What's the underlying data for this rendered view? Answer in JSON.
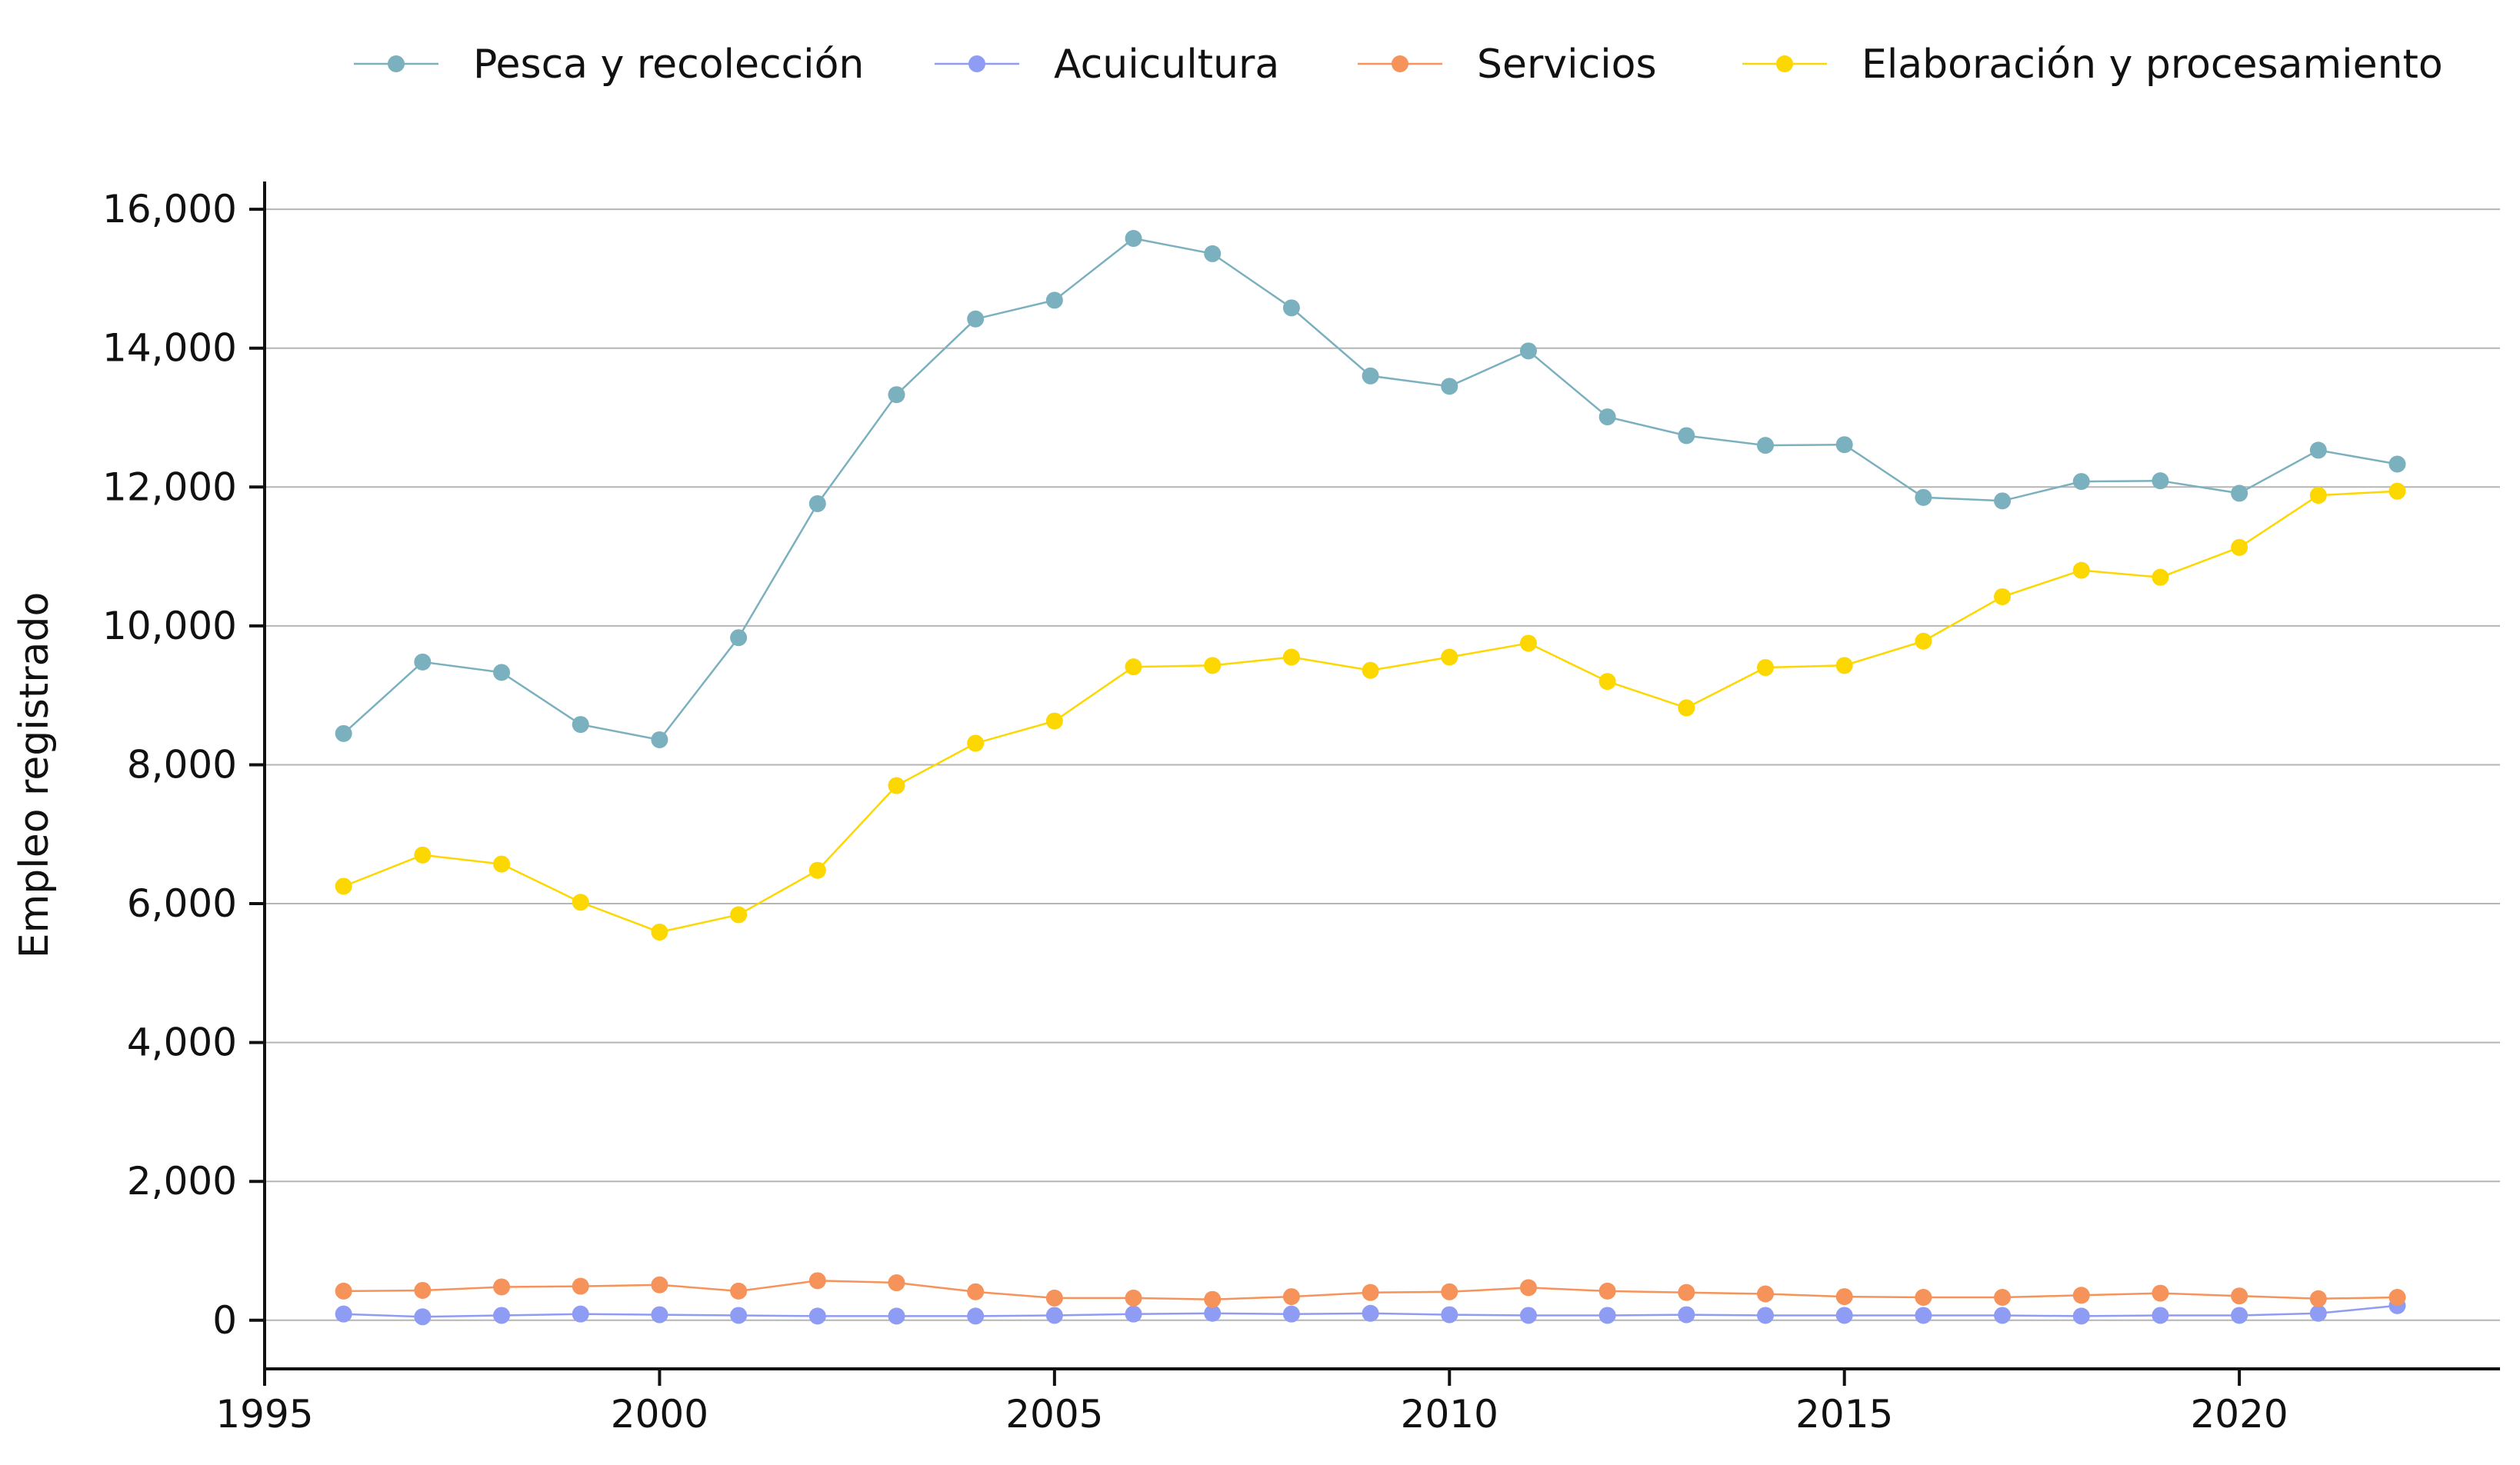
{
  "chart_data": {
    "type": "line",
    "title": "",
    "xlabel": "",
    "ylabel": "Empleo registrado",
    "xlim": [
      1995,
      2023.3
    ],
    "ylim": [
      -700,
      16400
    ],
    "x_ticks": [
      1995,
      2000,
      2005,
      2010,
      2015,
      2020
    ],
    "x_tick_labels": [
      "1995",
      "2000",
      "2005",
      "2010",
      "2015",
      "2020"
    ],
    "y_ticks": [
      0,
      2000,
      4000,
      6000,
      8000,
      10000,
      12000,
      14000,
      16000
    ],
    "y_tick_labels": [
      "0",
      "2,000",
      "4,000",
      "6,000",
      "8,000",
      "10,000",
      "12,000",
      "14,000",
      "16,000"
    ],
    "grid": "horizontal",
    "legend_position": "top",
    "x": [
      1996,
      1997,
      1998,
      1999,
      2000,
      2001,
      2002,
      2003,
      2004,
      2005,
      2006,
      2007,
      2008,
      2009,
      2010,
      2011,
      2012,
      2013,
      2014,
      2015,
      2016,
      2017,
      2018,
      2019,
      2020,
      2021,
      2022
    ],
    "series": [
      {
        "name": "Pesca y recolección",
        "color": "#7BB0BE",
        "values": [
          8450,
          9480,
          9330,
          8580,
          8360,
          9830,
          11760,
          13330,
          14420,
          14690,
          15580,
          15360,
          14580,
          13600,
          13450,
          13960,
          13010,
          12740,
          12600,
          12610,
          11850,
          11800,
          12080,
          12090,
          11910,
          12530,
          12330
        ]
      },
      {
        "name": "Acuicultura",
        "color": "#8E9CF4",
        "values": [
          90,
          50,
          70,
          90,
          80,
          70,
          60,
          60,
          60,
          70,
          90,
          100,
          90,
          100,
          80,
          70,
          70,
          80,
          70,
          70,
          70,
          70,
          60,
          70,
          70,
          100,
          210
        ]
      },
      {
        "name": "Servicios",
        "color": "#F5935A",
        "values": [
          420,
          430,
          480,
          490,
          510,
          420,
          570,
          540,
          410,
          320,
          320,
          300,
          340,
          400,
          410,
          470,
          420,
          400,
          380,
          340,
          330,
          330,
          360,
          390,
          350,
          310,
          330
        ]
      },
      {
        "name": "Elaboración y procesamiento",
        "color": "#FDD700",
        "values": [
          6250,
          6700,
          6570,
          6020,
          5590,
          5840,
          6480,
          7700,
          8310,
          8630,
          9410,
          9430,
          9550,
          9360,
          9550,
          9750,
          9200,
          8820,
          9400,
          9430,
          9780,
          10420,
          10800,
          10700,
          11130,
          11880,
          11940
        ]
      }
    ]
  }
}
